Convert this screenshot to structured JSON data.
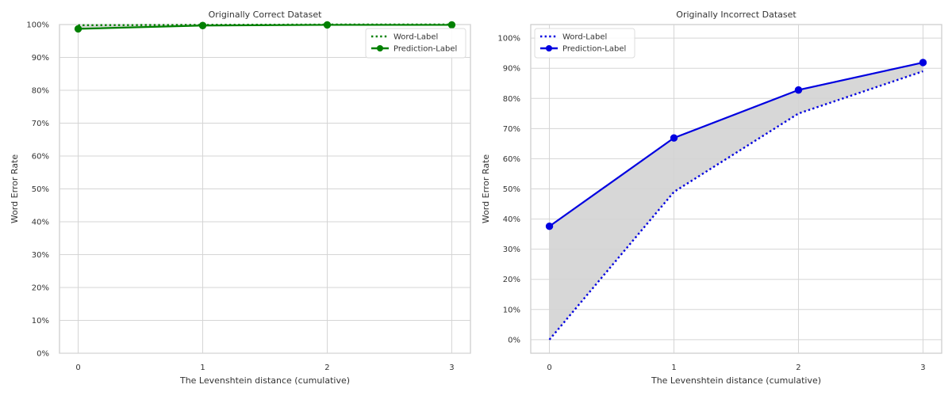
{
  "chart_data": [
    {
      "type": "line",
      "title": "Originally Correct Dataset",
      "xlabel": "The Levenshtein distance (cumulative)",
      "ylabel": "Word Error Rate",
      "x": [
        0,
        1,
        2,
        3
      ],
      "xticks": [
        "0",
        "1",
        "2",
        "3"
      ],
      "ylim": [
        0,
        100
      ],
      "yticks": [
        "0%",
        "10%",
        "20%",
        "30%",
        "40%",
        "50%",
        "60%",
        "70%",
        "80%",
        "90%",
        "100%"
      ],
      "grid": true,
      "legend": "top-right",
      "fill_between_series": true,
      "fill_color": "#d3d3d3",
      "series": [
        {
          "name": "Word-Label",
          "style": "dotted",
          "marker": "none",
          "color": "#008000",
          "values": [
            99.8,
            99.9,
            100.0,
            100.0
          ]
        },
        {
          "name": "Prediction-Label",
          "style": "solid",
          "marker": "circle",
          "color": "#008000",
          "values": [
            98.7,
            99.7,
            99.9,
            99.9
          ]
        }
      ]
    },
    {
      "type": "line",
      "title": "Originally Incorrect Dataset",
      "xlabel": "The Levenshtein distance (cumulative)",
      "ylabel": "Word Error Rate",
      "x": [
        0,
        1,
        2,
        3
      ],
      "xticks": [
        "0",
        "1",
        "2",
        "3"
      ],
      "ylim": [
        -4.5,
        104.5
      ],
      "yticks": [
        "0%",
        "10%",
        "20%",
        "30%",
        "40%",
        "50%",
        "60%",
        "70%",
        "80%",
        "90%",
        "100%"
      ],
      "grid": true,
      "legend": "top-left",
      "fill_between_series": true,
      "fill_color": "#d3d3d3",
      "series": [
        {
          "name": "Word-Label",
          "style": "dotted",
          "marker": "none",
          "color": "#0000e0",
          "values": [
            0,
            49,
            75,
            89
          ]
        },
        {
          "name": "Prediction-Label",
          "style": "solid",
          "marker": "circle",
          "color": "#0000e0",
          "values": [
            37.6,
            66.9,
            82.8,
            91.9
          ]
        }
      ]
    }
  ]
}
